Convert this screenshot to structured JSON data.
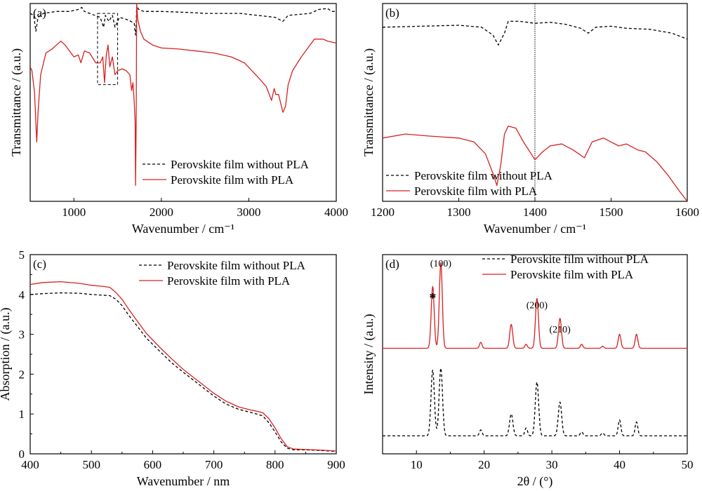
{
  "colors": {
    "without_pla": "#000000",
    "with_pla": "#d62020"
  },
  "chart_data": [
    {
      "id": "a",
      "type": "line",
      "panel_label": "(a)",
      "xlabel": "Wavenumber / cm⁻¹",
      "ylabel": "Transmittance / (a.u.)",
      "xlim": [
        500,
        4000
      ],
      "ylim": [
        0,
        100
      ],
      "xticks": [
        1000,
        2000,
        3000,
        4000
      ],
      "yticks": [],
      "legend_position": "bottom-right",
      "annotations": [
        {
          "kind": "dashed-box",
          "x0": 1270,
          "x1": 1500,
          "y0": 59,
          "y1": 95
        }
      ],
      "series": [
        {
          "name": "Perovskite film without PLA",
          "style": "dashed",
          "color": "#000000",
          "points": [
            [
              500,
              95
            ],
            [
              540,
              94
            ],
            [
              565,
              86
            ],
            [
              590,
              93
            ],
            [
              650,
              95
            ],
            [
              800,
              96
            ],
            [
              950,
              96
            ],
            [
              1050,
              97
            ],
            [
              1090,
              98
            ],
            [
              1120,
              96
            ],
            [
              1180,
              95
            ],
            [
              1300,
              93
            ],
            [
              1340,
              88
            ],
            [
              1360,
              94
            ],
            [
              1400,
              91
            ],
            [
              1440,
              94
            ],
            [
              1470,
              88
            ],
            [
              1520,
              93
            ],
            [
              1600,
              92
            ],
            [
              1650,
              91
            ],
            [
              1690,
              90
            ],
            [
              1705,
              84
            ],
            [
              1712,
              90
            ],
            [
              1718,
              99
            ],
            [
              1740,
              97
            ],
            [
              1800,
              96
            ],
            [
              2000,
              96
            ],
            [
              2300,
              95.5
            ],
            [
              2500,
              95
            ],
            [
              2900,
              95
            ],
            [
              3300,
              93
            ],
            [
              3390,
              91
            ],
            [
              3450,
              94
            ],
            [
              3700,
              95
            ],
            [
              3750,
              96
            ],
            [
              3800,
              97
            ],
            [
              3900,
              97.5
            ],
            [
              3950,
              96
            ],
            [
              4000,
              96
            ]
          ]
        },
        {
          "name": "Perovskite film with PLA",
          "style": "solid",
          "color": "#d62020",
          "points": [
            [
              500,
              68
            ],
            [
              520,
              66
            ],
            [
              550,
              55
            ],
            [
              575,
              30
            ],
            [
              590,
              45
            ],
            [
              620,
              64
            ],
            [
              680,
              75
            ],
            [
              750,
              77
            ],
            [
              800,
              79
            ],
            [
              850,
              81
            ],
            [
              900,
              79
            ],
            [
              950,
              76
            ],
            [
              1000,
              73
            ],
            [
              1050,
              74
            ],
            [
              1080,
              70
            ],
            [
              1120,
              76
            ],
            [
              1180,
              75
            ],
            [
              1250,
              70
            ],
            [
              1300,
              70
            ],
            [
              1330,
              73
            ],
            [
              1350,
              60
            ],
            [
              1370,
              74
            ],
            [
              1390,
              79
            ],
            [
              1410,
              68
            ],
            [
              1440,
              73
            ],
            [
              1470,
              64
            ],
            [
              1500,
              66
            ],
            [
              1550,
              67
            ],
            [
              1600,
              66
            ],
            [
              1640,
              64
            ],
            [
              1660,
              56
            ],
            [
              1675,
              60
            ],
            [
              1690,
              50
            ],
            [
              1700,
              40
            ],
            [
              1705,
              8
            ],
            [
              1712,
              40
            ],
            [
              1718,
              100
            ],
            [
              1730,
              92
            ],
            [
              1760,
              86
            ],
            [
              1800,
              82
            ],
            [
              1900,
              79
            ],
            [
              2000,
              77.5
            ],
            [
              2200,
              77
            ],
            [
              2400,
              76
            ],
            [
              2600,
              75
            ],
            [
              2800,
              73
            ],
            [
              2950,
              70
            ],
            [
              3100,
              63
            ],
            [
              3200,
              58
            ],
            [
              3260,
              51
            ],
            [
              3290,
              57
            ],
            [
              3310,
              54
            ],
            [
              3340,
              54
            ],
            [
              3390,
              45
            ],
            [
              3420,
              48
            ],
            [
              3450,
              59
            ],
            [
              3500,
              66
            ],
            [
              3600,
              73
            ],
            [
              3650,
              76
            ],
            [
              3700,
              79
            ],
            [
              3750,
              82
            ],
            [
              3800,
              82
            ],
            [
              3850,
              82
            ],
            [
              3900,
              81
            ],
            [
              4000,
              80
            ]
          ]
        }
      ]
    },
    {
      "id": "b",
      "type": "line",
      "panel_label": "(b)",
      "xlabel": "Wavenumber / cm⁻¹",
      "ylabel": "Transmittance / (a.u.)",
      "xlim": [
        1200,
        1600
      ],
      "ylim": [
        0,
        100
      ],
      "xticks": [
        1200,
        1300,
        1400,
        1500,
        1600
      ],
      "yticks": [],
      "vline": 1400,
      "legend_position": "bottom-left",
      "series": [
        {
          "name": "Perovskite film without PLA",
          "style": "dashed",
          "color": "#000000",
          "points": [
            [
              1200,
              88
            ],
            [
              1250,
              88.5
            ],
            [
              1300,
              89
            ],
            [
              1330,
              88
            ],
            [
              1345,
              84
            ],
            [
              1352,
              79
            ],
            [
              1360,
              85
            ],
            [
              1365,
              91
            ],
            [
              1380,
              91
            ],
            [
              1400,
              90
            ],
            [
              1420,
              90.5
            ],
            [
              1440,
              89.5
            ],
            [
              1460,
              87.5
            ],
            [
              1470,
              85
            ],
            [
              1480,
              88
            ],
            [
              1500,
              88.5
            ],
            [
              1520,
              87.5
            ],
            [
              1550,
              87
            ],
            [
              1580,
              85
            ],
            [
              1600,
              82
            ]
          ]
        },
        {
          "name": "Perovskite film with PLA",
          "style": "solid",
          "color": "#d62020",
          "points": [
            [
              1200,
              32
            ],
            [
              1230,
              34
            ],
            [
              1260,
              33
            ],
            [
              1300,
              32
            ],
            [
              1320,
              30
            ],
            [
              1335,
              24
            ],
            [
              1345,
              14
            ],
            [
              1350,
              8
            ],
            [
              1355,
              18
            ],
            [
              1360,
              34
            ],
            [
              1365,
              38
            ],
            [
              1375,
              37
            ],
            [
              1385,
              30
            ],
            [
              1395,
              24
            ],
            [
              1400,
              21
            ],
            [
              1410,
              25
            ],
            [
              1420,
              28
            ],
            [
              1435,
              29
            ],
            [
              1450,
              26
            ],
            [
              1465,
              22
            ],
            [
              1475,
              30
            ],
            [
              1490,
              32
            ],
            [
              1500,
              30
            ],
            [
              1510,
              28
            ],
            [
              1520,
              29
            ],
            [
              1535,
              26
            ],
            [
              1545,
              25
            ],
            [
              1560,
              20
            ],
            [
              1575,
              13
            ],
            [
              1590,
              5
            ],
            [
              1600,
              0
            ]
          ]
        }
      ]
    },
    {
      "id": "c",
      "type": "line",
      "panel_label": "(c)",
      "xlabel": "Wavenumber / nm",
      "ylabel": "Absorption / (a.u.)",
      "xlim": [
        400,
        900
      ],
      "ylim": [
        0,
        5
      ],
      "xticks": [
        400,
        500,
        600,
        700,
        800,
        900
      ],
      "yticks": [
        0,
        1,
        2,
        3,
        4,
        5
      ],
      "legend_position": "top-right",
      "series": [
        {
          "name": "Perovskite film without PLA",
          "style": "dashed",
          "color": "#000000",
          "points": [
            [
              400,
              4.0
            ],
            [
              420,
              4.02
            ],
            [
              450,
              4.04
            ],
            [
              480,
              4.03
            ],
            [
              500,
              4.0
            ],
            [
              520,
              3.98
            ],
            [
              530,
              3.97
            ],
            [
              540,
              3.88
            ],
            [
              550,
              3.72
            ],
            [
              560,
              3.5
            ],
            [
              575,
              3.2
            ],
            [
              590,
              2.9
            ],
            [
              610,
              2.6
            ],
            [
              630,
              2.3
            ],
            [
              650,
              2.05
            ],
            [
              675,
              1.75
            ],
            [
              700,
              1.45
            ],
            [
              720,
              1.25
            ],
            [
              740,
              1.12
            ],
            [
              760,
              1.04
            ],
            [
              770,
              1.0
            ],
            [
              780,
              0.95
            ],
            [
              790,
              0.78
            ],
            [
              800,
              0.55
            ],
            [
              810,
              0.3
            ],
            [
              820,
              0.14
            ],
            [
              830,
              0.1
            ],
            [
              850,
              0.1
            ],
            [
              880,
              0.08
            ],
            [
              900,
              0.06
            ]
          ]
        },
        {
          "name": "Perovskite film with PLA",
          "style": "solid",
          "color": "#d62020",
          "points": [
            [
              400,
              4.25
            ],
            [
              420,
              4.3
            ],
            [
              450,
              4.32
            ],
            [
              480,
              4.28
            ],
            [
              500,
              4.23
            ],
            [
              520,
              4.2
            ],
            [
              530,
              4.18
            ],
            [
              540,
              4.05
            ],
            [
              550,
              3.88
            ],
            [
              560,
              3.65
            ],
            [
              575,
              3.33
            ],
            [
              590,
              3.02
            ],
            [
              610,
              2.7
            ],
            [
              630,
              2.4
            ],
            [
              650,
              2.12
            ],
            [
              675,
              1.82
            ],
            [
              700,
              1.52
            ],
            [
              720,
              1.32
            ],
            [
              740,
              1.18
            ],
            [
              760,
              1.1
            ],
            [
              770,
              1.07
            ],
            [
              780,
              1.03
            ],
            [
              790,
              0.88
            ],
            [
              800,
              0.65
            ],
            [
              810,
              0.38
            ],
            [
              820,
              0.18
            ],
            [
              830,
              0.12
            ],
            [
              850,
              0.11
            ],
            [
              880,
              0.09
            ],
            [
              900,
              0.07
            ]
          ]
        }
      ]
    },
    {
      "id": "d",
      "type": "line",
      "panel_label": "(d)",
      "xlabel": "2θ / (°)",
      "ylabel": "Intensity / (a.u.)",
      "xlim": [
        5,
        50
      ],
      "ylim": [
        0,
        100
      ],
      "xticks": [
        10,
        20,
        30,
        40,
        50
      ],
      "yticks": [],
      "legend_position": "top-right",
      "annotations": [
        {
          "kind": "text",
          "text": "(100)",
          "x": 13.6,
          "y": 94
        },
        {
          "kind": "text",
          "text": "*",
          "x": 12.4,
          "y": 76
        },
        {
          "kind": "text",
          "text": "(200)",
          "x": 27.8,
          "y": 73
        },
        {
          "kind": "text",
          "text": "(210)",
          "x": 31.2,
          "y": 61
        }
      ],
      "series": [
        {
          "name": "Perovskite film without PLA",
          "style": "dashed",
          "color": "#000000",
          "baseline": 9,
          "peaks": [
            [
              12.4,
              33,
              0.25
            ],
            [
              13.6,
              34,
              0.25
            ],
            [
              19.5,
              3,
              0.2
            ],
            [
              24.0,
              11,
              0.25
            ],
            [
              26.2,
              4,
              0.2
            ],
            [
              27.8,
              27,
              0.25
            ],
            [
              31.2,
              17,
              0.25
            ],
            [
              34.4,
              2,
              0.2
            ],
            [
              37.5,
              1.5,
              0.2
            ],
            [
              40.0,
              8,
              0.2
            ],
            [
              42.5,
              7,
              0.2
            ]
          ]
        },
        {
          "name": "Perovskite film with PLA",
          "style": "solid",
          "color": "#d62020",
          "baseline": 53,
          "peaks": [
            [
              12.4,
              31,
              0.22
            ],
            [
              13.6,
              43,
              0.22
            ],
            [
              19.5,
              3,
              0.18
            ],
            [
              24.0,
              12,
              0.22
            ],
            [
              26.2,
              2,
              0.18
            ],
            [
              27.8,
              25,
              0.22
            ],
            [
              31.2,
              15,
              0.22
            ],
            [
              34.4,
              2,
              0.18
            ],
            [
              37.5,
              1,
              0.18
            ],
            [
              40.0,
              7,
              0.2
            ],
            [
              42.5,
              7,
              0.2
            ]
          ]
        }
      ]
    }
  ]
}
